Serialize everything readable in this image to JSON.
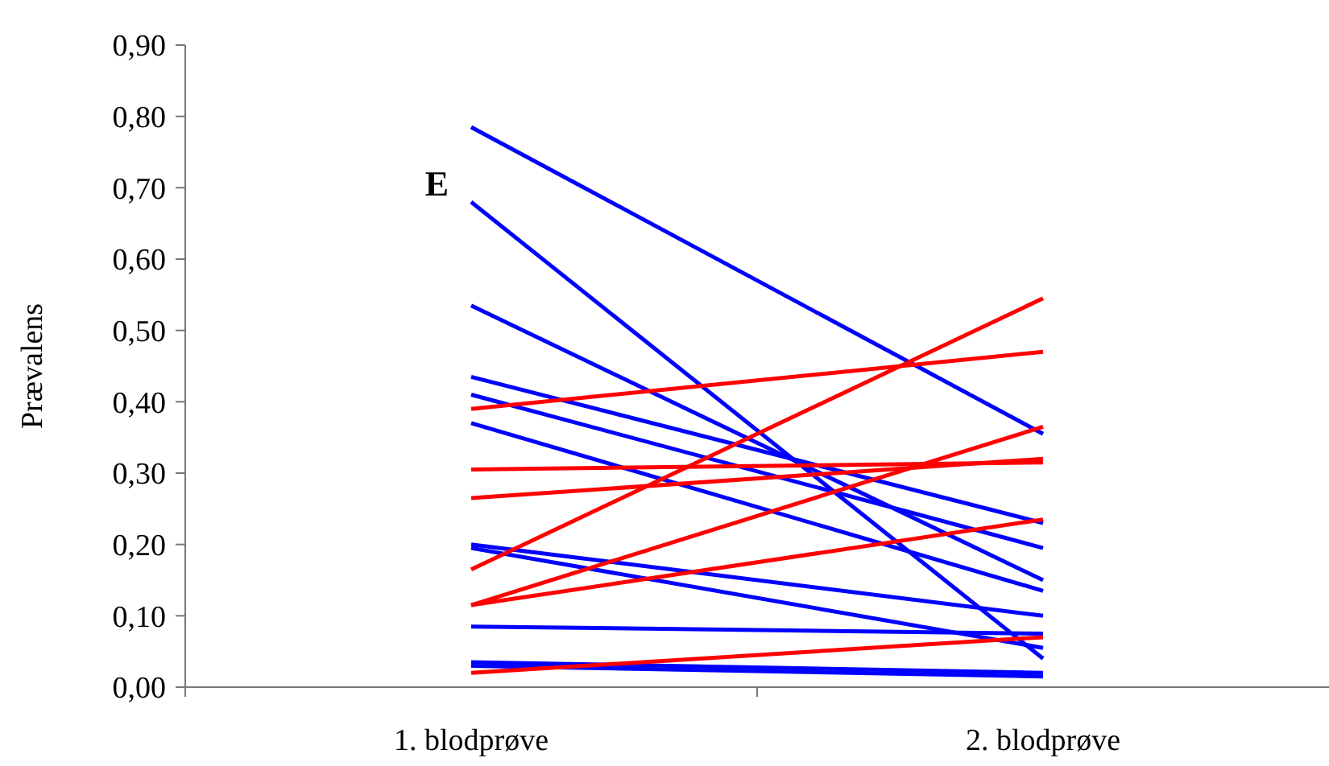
{
  "chart_data": {
    "type": "line",
    "ylabel": "Prævalens",
    "categories": [
      "1. blodprøve",
      "2. blodprøve"
    ],
    "ylim": [
      0,
      0.9
    ],
    "yticks": [
      {
        "value": 0,
        "label": "0,00"
      },
      {
        "value": 0.1,
        "label": "0,10"
      },
      {
        "value": 0.2,
        "label": "0,20"
      },
      {
        "value": 0.3,
        "label": "0,30"
      },
      {
        "value": 0.4,
        "label": "0,40"
      },
      {
        "value": 0.5,
        "label": "0,50"
      },
      {
        "value": 0.6,
        "label": "0,60"
      },
      {
        "value": 0.7,
        "label": "0,70"
      },
      {
        "value": 0.8,
        "label": "0,80"
      },
      {
        "value": 0.9,
        "label": "0,90"
      }
    ],
    "marker": "none",
    "line_style": "solid",
    "grid": false,
    "annotations": [
      "E"
    ],
    "series": [
      {
        "color": "#0000ff",
        "values": [
          0.785,
          0.355
        ]
      },
      {
        "color": "#0000ff",
        "values": [
          0.68,
          0.04
        ]
      },
      {
        "color": "#0000ff",
        "values": [
          0.535,
          0.15
        ]
      },
      {
        "color": "#0000ff",
        "values": [
          0.435,
          0.23
        ]
      },
      {
        "color": "#0000ff",
        "values": [
          0.41,
          0.195
        ]
      },
      {
        "color": "#0000ff",
        "values": [
          0.37,
          0.135
        ]
      },
      {
        "color": "#0000ff",
        "values": [
          0.2,
          0.1
        ]
      },
      {
        "color": "#0000ff",
        "values": [
          0.195,
          0.055
        ]
      },
      {
        "color": "#0000ff",
        "values": [
          0.085,
          0.075
        ]
      },
      {
        "color": "#0000ff",
        "values": [
          0.035,
          0.02
        ]
      },
      {
        "color": "#0000ff",
        "values": [
          0.03,
          0.015
        ]
      },
      {
        "color": "#ff0000",
        "values": [
          0.39,
          0.47
        ]
      },
      {
        "color": "#ff0000",
        "values": [
          0.305,
          0.315
        ]
      },
      {
        "color": "#ff0000",
        "values": [
          0.265,
          0.32
        ]
      },
      {
        "color": "#ff0000",
        "values": [
          0.165,
          0.545
        ]
      },
      {
        "color": "#ff0000",
        "values": [
          0.115,
          0.365
        ]
      },
      {
        "color": "#ff0000",
        "values": [
          0.115,
          0.235
        ]
      },
      {
        "color": "#ff0000",
        "values": [
          0.02,
          0.07
        ]
      }
    ]
  }
}
